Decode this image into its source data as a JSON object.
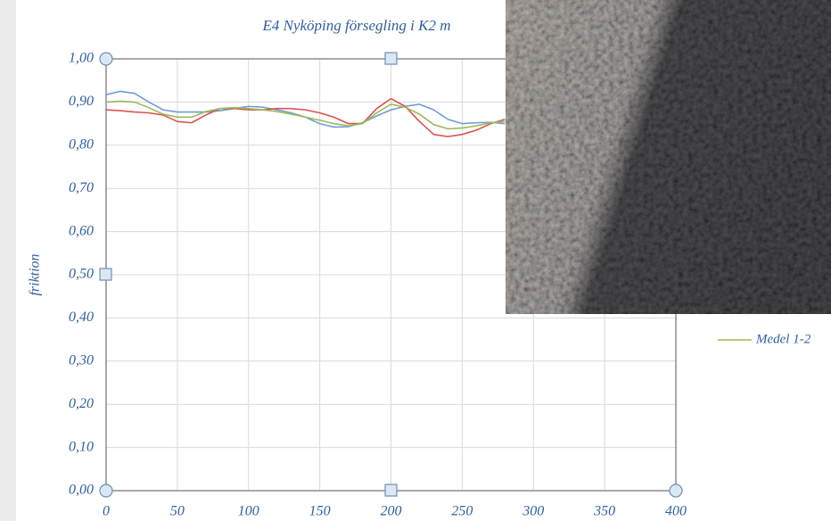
{
  "chart_data": {
    "type": "line",
    "title": "E4 Nyköping försegling i K2 m",
    "y_label": "friktion",
    "x": [
      0,
      10,
      20,
      30,
      40,
      50,
      60,
      70,
      80,
      90,
      100,
      110,
      120,
      130,
      140,
      150,
      160,
      170,
      180,
      190,
      200,
      210,
      220,
      230,
      240,
      250,
      260,
      270,
      280
    ],
    "series": [
      {
        "color": "#6f9bd6",
        "values": [
          0.917,
          0.925,
          0.92,
          0.9,
          0.882,
          0.877,
          0.877,
          0.877,
          0.88,
          0.885,
          0.89,
          0.888,
          0.882,
          0.875,
          0.865,
          0.85,
          0.842,
          0.843,
          0.852,
          0.868,
          0.882,
          0.89,
          0.895,
          0.882,
          0.86,
          0.85,
          0.852,
          0.853,
          0.85
        ]
      },
      {
        "color": "#d9534f",
        "values": [
          0.882,
          0.88,
          0.877,
          0.875,
          0.87,
          0.855,
          0.852,
          0.87,
          0.885,
          0.885,
          0.882,
          0.882,
          0.885,
          0.885,
          0.882,
          0.875,
          0.865,
          0.85,
          0.85,
          0.885,
          0.908,
          0.89,
          0.855,
          0.825,
          0.82,
          0.825,
          0.835,
          0.85,
          0.86
        ]
      },
      {
        "name": "Medel 1-2",
        "color": "#9bbb59",
        "values": [
          0.9,
          0.902,
          0.9,
          0.887,
          0.872,
          0.865,
          0.865,
          0.878,
          0.885,
          0.887,
          0.885,
          0.882,
          0.878,
          0.872,
          0.865,
          0.858,
          0.85,
          0.845,
          0.85,
          0.875,
          0.895,
          0.888,
          0.872,
          0.848,
          0.838,
          0.84,
          0.845,
          0.852,
          0.855
        ]
      }
    ],
    "xlim": [
      0,
      400
    ],
    "xticks": [
      0,
      50,
      100,
      150,
      200,
      250,
      300,
      350,
      400
    ],
    "ylim": [
      0,
      1
    ],
    "yticks": [
      {
        "value": 0,
        "label": "0,00"
      },
      {
        "value": 0.1,
        "label": "0,10"
      },
      {
        "value": 0.2,
        "label": "0,20"
      },
      {
        "value": 0.3,
        "label": "0,30"
      },
      {
        "value": 0.4,
        "label": "0,40"
      },
      {
        "value": 0.5,
        "label": "0,50"
      },
      {
        "value": 0.6,
        "label": "0,60"
      },
      {
        "value": 0.7,
        "label": "0,70"
      },
      {
        "value": 0.8,
        "label": "0,80"
      },
      {
        "value": 0.9,
        "label": "0,90"
      },
      {
        "value": 1,
        "label": "1,00"
      }
    ],
    "grid": true
  }
}
